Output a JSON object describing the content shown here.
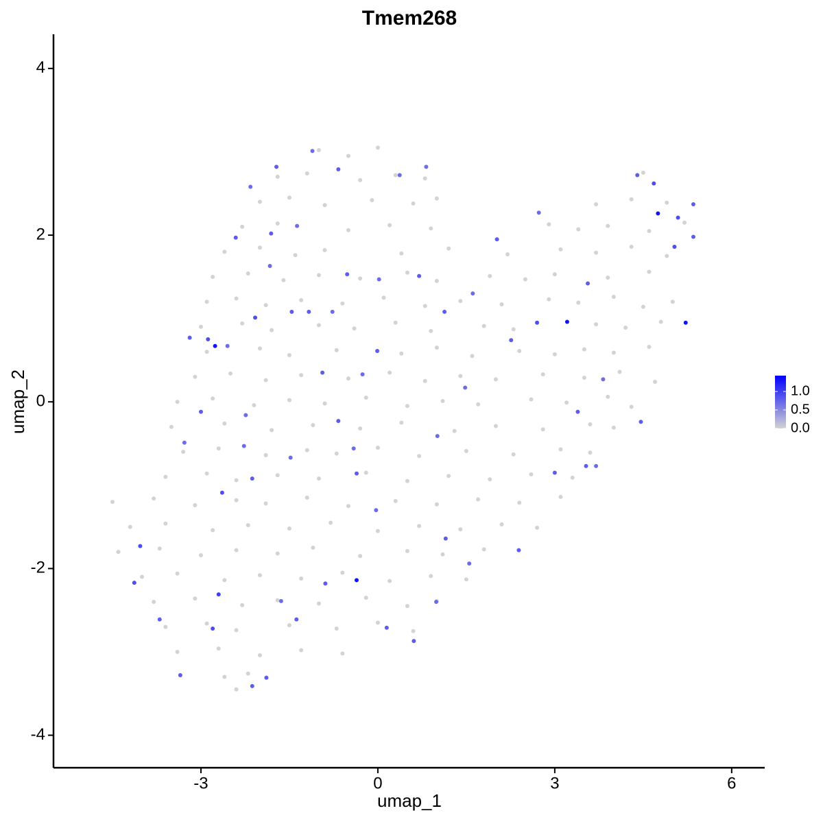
{
  "chart_data": {
    "type": "scatter",
    "title": "Tmem268",
    "x_label": "umap_1",
    "y_label": "umap_2",
    "xlim": [
      -5.5,
      6.56
    ],
    "ylim": [
      -4.39,
      4.41
    ],
    "xticks": [
      -3,
      0,
      3,
      6
    ],
    "yticks": [
      -4,
      -2,
      0,
      2,
      4
    ],
    "color_scale": {
      "low": "#d3d3d3",
      "high": "#0000ff",
      "lim": [
        0,
        1.43
      ],
      "ticks": [
        {
          "value": 0,
          "label": "0.0"
        },
        {
          "value": 0.5,
          "label": "0.5"
        },
        {
          "value": 1,
          "label": "1.0"
        }
      ]
    },
    "x": [
      -1.0,
      -0.5,
      0.0,
      -1.7,
      -1.2,
      -0.3,
      0.3,
      0.8,
      4.5,
      -2.0,
      -1.5,
      -0.9,
      -0.1,
      0.6,
      1.0,
      3.7,
      4.3,
      4.9,
      -2.3,
      -1.7,
      -0.5,
      0.2,
      0.9,
      2.9,
      3.4,
      3.9,
      4.6,
      5.2,
      -2.6,
      -2.0,
      -1.4,
      -0.9,
      0.4,
      1.2,
      2.2,
      3.1,
      3.7,
      4.3,
      4.9,
      -2.8,
      -2.2,
      -1.6,
      -1.0,
      -0.3,
      0.5,
      1.0,
      1.9,
      2.5,
      3.0,
      3.9,
      4.6,
      -2.9,
      -2.4,
      -1.9,
      -1.3,
      -0.6,
      0.1,
      0.8,
      1.4,
      2.1,
      2.9,
      3.4,
      4.0,
      4.5,
      5.0,
      -3.0,
      -2.3,
      -1.8,
      -1.0,
      -0.4,
      0.3,
      0.9,
      1.8,
      2.3,
      3.7,
      4.2,
      4.8,
      -2.9,
      -2.0,
      -1.5,
      -0.7,
      0.4,
      1.0,
      1.6,
      2.4,
      3.0,
      3.5,
      4.0,
      4.6,
      -3.1,
      -2.5,
      -1.9,
      -1.3,
      -0.5,
      0.2,
      0.8,
      1.4,
      2.0,
      2.8,
      3.5,
      4.1,
      4.7,
      -3.4,
      -2.8,
      -2.1,
      -1.5,
      -0.9,
      -0.2,
      0.5,
      1.1,
      1.7,
      2.6,
      3.2,
      3.9,
      4.3,
      -3.5,
      -2.6,
      -1.8,
      -1.1,
      -0.3,
      0.4,
      1.3,
      2.0,
      2.8,
      3.6,
      4.0,
      -3.3,
      -2.7,
      -1.9,
      -1.2,
      -0.7,
      0.0,
      0.7,
      1.5,
      2.3,
      3.1,
      3.6,
      -3.6,
      -2.9,
      -2.4,
      -1.7,
      -1.0,
      -0.2,
      0.5,
      1.2,
      1.9,
      2.6,
      3.3,
      -4.5,
      -3.8,
      -3.1,
      -2.4,
      -1.9,
      -1.2,
      -0.5,
      0.3,
      1.0,
      1.7,
      2.4,
      3.1,
      -4.2,
      -3.6,
      -2.8,
      -2.2,
      -1.5,
      -0.8,
      0.0,
      0.7,
      1.4,
      2.1,
      2.7,
      -4.4,
      -3.7,
      -3.0,
      -2.4,
      -1.7,
      -1.1,
      -0.3,
      0.5,
      1.1,
      1.8,
      -4.0,
      -3.4,
      -2.6,
      -2.0,
      -1.3,
      -0.6,
      0.2,
      0.9,
      1.5,
      -3.8,
      -3.1,
      -2.3,
      -1.7,
      -1.0,
      -0.2,
      0.5,
      1.0,
      -3.6,
      -2.9,
      -2.4,
      -1.5,
      -0.7,
      0.0,
      0.6,
      -3.4,
      -2.7,
      -2.0,
      -1.3,
      -0.6,
      -2.6,
      -2.2,
      -2.4,
      -3.19,
      -2.88,
      -2.55,
      -2.41,
      -2.16,
      -1.72,
      -1.11,
      -0.67,
      0.37,
      0.82,
      -1.81,
      -1.37,
      -1.46,
      -2.08,
      -0.52,
      0.02,
      0.7,
      1.61,
      2.02,
      2.7,
      2.26,
      2.73,
      3.56,
      4.4,
      4.68,
      5.09,
      5.35,
      5.03,
      5.35,
      4.46,
      3.7,
      3.39,
      3.0,
      2.39,
      1.55,
      1.15,
      0.99,
      0.61,
      0.15,
      -0.03,
      -0.36,
      -0.41,
      -0.67,
      -0.94,
      -0.01,
      -0.26,
      -1.48,
      -2.13,
      -2.64,
      -3.0,
      -3.28,
      -4.03,
      -3.7,
      -3.35,
      -2.8,
      -2.13,
      -1.89,
      -1.38,
      -1.64,
      -0.89,
      -2.27,
      -2.24,
      -1.17,
      -0.77,
      -1.83,
      1.13,
      1.48,
      1.01,
      3.53,
      3.82,
      -4.13,
      -2.76,
      -0.36,
      3.21,
      5.22,
      4.75,
      -2.7
    ],
    "y": [
      3.02,
      2.95,
      3.05,
      2.7,
      2.74,
      2.66,
      2.72,
      2.68,
      2.75,
      2.4,
      2.45,
      2.36,
      2.42,
      2.38,
      2.44,
      2.37,
      2.43,
      2.39,
      2.1,
      2.14,
      2.06,
      2.12,
      2.08,
      2.13,
      2.07,
      2.11,
      2.05,
      2.15,
      1.8,
      1.85,
      1.76,
      1.82,
      1.78,
      1.84,
      1.77,
      1.83,
      1.79,
      1.86,
      1.75,
      1.5,
      1.54,
      1.46,
      1.52,
      1.48,
      1.55,
      1.45,
      1.51,
      1.47,
      1.53,
      1.49,
      1.56,
      1.2,
      1.24,
      1.16,
      1.22,
      1.18,
      1.25,
      1.15,
      1.21,
      1.17,
      1.23,
      1.19,
      1.26,
      1.14,
      1.2,
      0.9,
      0.94,
      0.86,
      0.92,
      0.88,
      0.95,
      0.85,
      0.91,
      0.87,
      0.93,
      0.89,
      0.96,
      0.6,
      0.64,
      0.56,
      0.62,
      0.58,
      0.65,
      0.55,
      0.61,
      0.57,
      0.63,
      0.59,
      0.66,
      0.3,
      0.34,
      0.26,
      0.32,
      0.28,
      0.35,
      0.25,
      0.31,
      0.27,
      0.33,
      0.29,
      0.36,
      0.24,
      0.0,
      0.04,
      -0.04,
      0.02,
      -0.02,
      0.05,
      -0.05,
      0.01,
      -0.03,
      0.03,
      -0.01,
      0.06,
      -0.06,
      -0.3,
      -0.26,
      -0.34,
      -0.28,
      -0.32,
      -0.25,
      -0.35,
      -0.29,
      -0.33,
      -0.27,
      -0.31,
      -0.6,
      -0.56,
      -0.64,
      -0.58,
      -0.62,
      -0.55,
      -0.65,
      -0.59,
      -0.63,
      -0.57,
      -0.61,
      -0.9,
      -0.86,
      -0.94,
      -0.88,
      -0.92,
      -0.85,
      -0.95,
      -0.89,
      -0.93,
      -0.87,
      -0.91,
      -1.2,
      -1.16,
      -1.24,
      -1.18,
      -1.22,
      -1.15,
      -1.25,
      -1.19,
      -1.23,
      -1.17,
      -1.21,
      -1.14,
      -1.5,
      -1.46,
      -1.54,
      -1.48,
      -1.52,
      -1.45,
      -1.55,
      -1.49,
      -1.53,
      -1.47,
      -1.51,
      -1.8,
      -1.76,
      -1.84,
      -1.78,
      -1.82,
      -1.75,
      -1.85,
      -1.79,
      -1.83,
      -1.77,
      -2.1,
      -2.06,
      -2.14,
      -2.08,
      -2.12,
      -2.05,
      -2.15,
      -2.09,
      -2.13,
      -2.4,
      -2.36,
      -2.44,
      -2.38,
      -2.42,
      -2.35,
      -2.45,
      -2.39,
      -2.7,
      -2.66,
      -2.74,
      -2.68,
      -2.72,
      -2.65,
      -2.75,
      -3.0,
      -2.96,
      -3.04,
      -2.98,
      -3.02,
      -3.3,
      -3.26,
      -3.45,
      0.77,
      0.75,
      0.67,
      1.97,
      2.58,
      2.82,
      3.01,
      2.79,
      2.72,
      2.82,
      2.02,
      2.11,
      1.08,
      1.01,
      1.53,
      1.47,
      1.51,
      1.3,
      1.95,
      0.95,
      0.74,
      2.27,
      1.42,
      2.72,
      2.62,
      2.21,
      2.37,
      1.86,
      1.98,
      -0.24,
      -0.77,
      -0.12,
      -0.85,
      -1.78,
      -1.94,
      -1.64,
      -2.4,
      -2.87,
      -2.71,
      -1.3,
      -0.86,
      -0.56,
      -0.23,
      0.35,
      0.61,
      0.33,
      -0.67,
      -0.92,
      -1.09,
      -0.12,
      -0.49,
      -1.73,
      -2.61,
      -3.28,
      -2.72,
      -3.41,
      -3.31,
      -2.61,
      -2.39,
      -2.18,
      -0.53,
      -0.16,
      1.08,
      1.08,
      1.63,
      1.08,
      0.17,
      -0.41,
      -0.77,
      0.27,
      -2.17,
      0.67,
      -2.14,
      0.96,
      0.95,
      2.26,
      -2.31
    ],
    "values": [
      0,
      0,
      0,
      0,
      0,
      0,
      0,
      0,
      0,
      0,
      0,
      0,
      0,
      0,
      0,
      0,
      0,
      0,
      0,
      0,
      0,
      0,
      0,
      0,
      0,
      0,
      0,
      0,
      0,
      0,
      0,
      0,
      0,
      0,
      0,
      0,
      0,
      0,
      0,
      0,
      0,
      0,
      0,
      0,
      0,
      0,
      0,
      0,
      0,
      0,
      0,
      0,
      0,
      0,
      0,
      0,
      0,
      0,
      0,
      0,
      0,
      0,
      0,
      0,
      0,
      0,
      0,
      0,
      0,
      0,
      0,
      0,
      0,
      0,
      0,
      0,
      0,
      0,
      0,
      0,
      0,
      0,
      0,
      0,
      0,
      0,
      0,
      0,
      0,
      0,
      0,
      0,
      0,
      0,
      0,
      0,
      0,
      0,
      0,
      0,
      0,
      0,
      0,
      0,
      0,
      0,
      0,
      0,
      0,
      0,
      0,
      0,
      0,
      0,
      0,
      0,
      0,
      0,
      0,
      0,
      0,
      0,
      0,
      0,
      0,
      0,
      0,
      0,
      0,
      0,
      0,
      0,
      0,
      0,
      0,
      0,
      0,
      0,
      0,
      0,
      0,
      0,
      0,
      0,
      0,
      0,
      0,
      0,
      0,
      0,
      0,
      0,
      0,
      0,
      0,
      0,
      0,
      0,
      0,
      0,
      0,
      0,
      0,
      0,
      0,
      0,
      0,
      0,
      0,
      0,
      0,
      0,
      0,
      0,
      0,
      0,
      0,
      0,
      0,
      0,
      0,
      0,
      0,
      0,
      0,
      0,
      0,
      0,
      0,
      0,
      0,
      0,
      0,
      0,
      0,
      0,
      0,
      0,
      0,
      0,
      0,
      0,
      0,
      0,
      0,
      0,
      0,
      0,
      0,
      0,
      0,
      0,
      0,
      0.8,
      0.9,
      0.7,
      0.8,
      0.7,
      0.8,
      0.7,
      0.8,
      0.7,
      0.7,
      0.8,
      0.7,
      0.8,
      0.9,
      0.8,
      0.7,
      0.8,
      0.7,
      0.8,
      0.9,
      0.8,
      0.7,
      0.8,
      0.8,
      0.9,
      0.9,
      0.8,
      0.9,
      0.8,
      0.8,
      0.7,
      0.8,
      0.8,
      0.8,
      0.7,
      0.8,
      0.7,
      0.8,
      0.8,
      0.7,
      0.8,
      0.7,
      0.8,
      0.8,
      0.8,
      0.7,
      0.7,
      0.8,
      0.9,
      0.8,
      0.7,
      0.9,
      0.8,
      0.8,
      0.9,
      0.8,
      0.8,
      0.8,
      0.7,
      0.8,
      0.7,
      0.7,
      0.8,
      0.7,
      0.7,
      0.8,
      0.7,
      0.7,
      0.8,
      0.7,
      0.9,
      1.3,
      1.3,
      1.3,
      1.3,
      1.3,
      1.0
    ]
  }
}
